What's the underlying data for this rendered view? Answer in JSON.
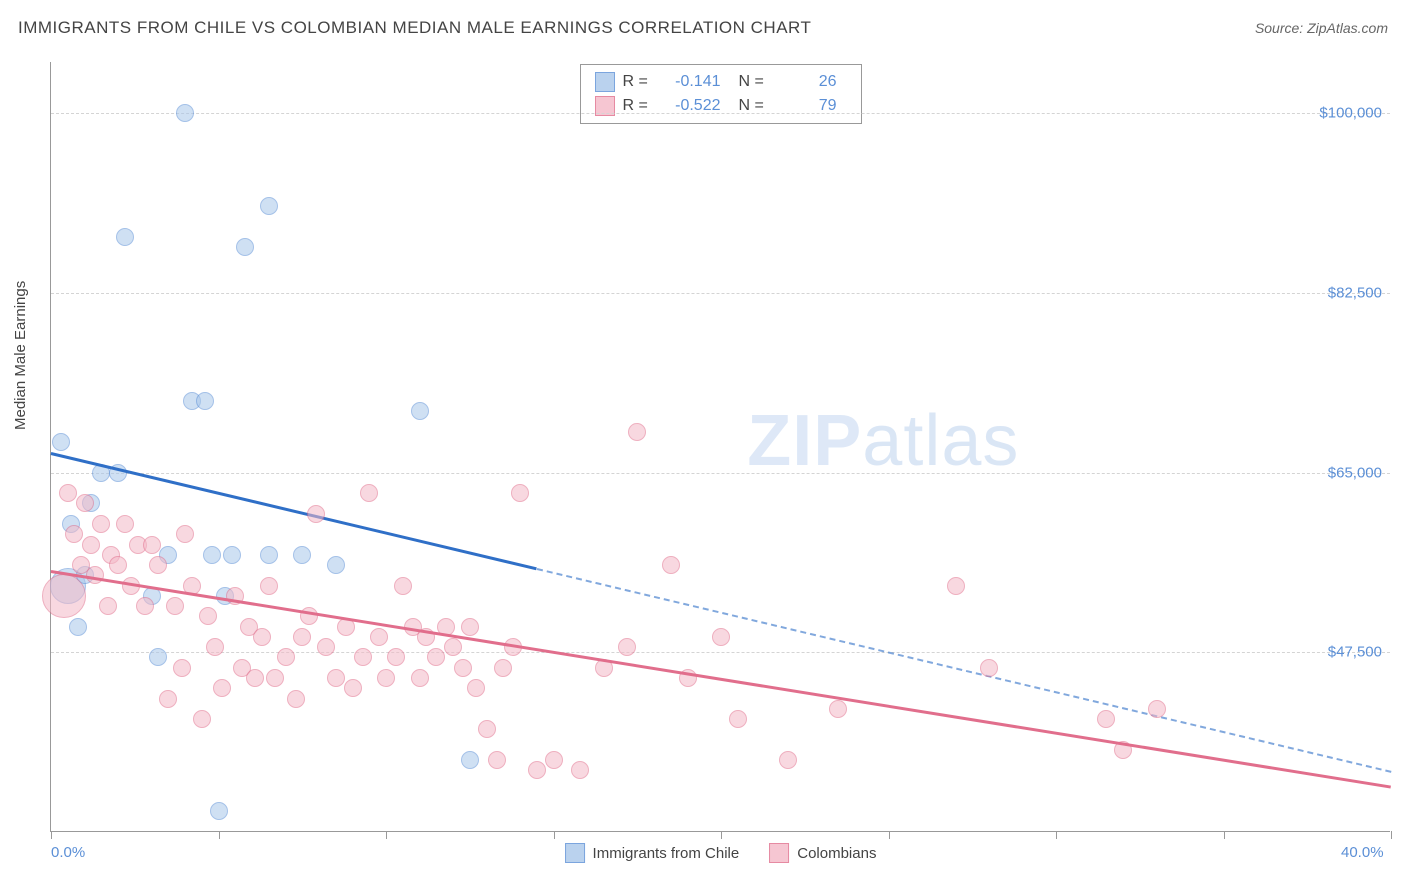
{
  "title": "IMMIGRANTS FROM CHILE VS COLOMBIAN MEDIAN MALE EARNINGS CORRELATION CHART",
  "source": "Source: ZipAtlas.com",
  "ylabel": "Median Male Earnings",
  "watermark_a": "ZIP",
  "watermark_b": "atlas",
  "chart": {
    "type": "scatter",
    "xlim": [
      0,
      40
    ],
    "ylim": [
      30000,
      105000
    ],
    "xtick_major": [
      0,
      40
    ],
    "xtick_minor_step": 5,
    "xtick_labels": {
      "0": "0.0%",
      "40": "40.0%"
    },
    "ytick_values": [
      47500,
      65000,
      82500,
      100000
    ],
    "ytick_labels": [
      "$47,500",
      "$65,000",
      "$82,500",
      "$100,000"
    ],
    "grid_color": "#d4d4d4",
    "axis_color": "#999999",
    "background_color": "#ffffff",
    "tick_label_color": "#5b8fd6",
    "title_fontsize": 17,
    "label_fontsize": 15,
    "series": [
      {
        "name": "Immigrants from Chile",
        "fill": "#a9c7ea",
        "stroke": "#5b8fd6",
        "fill_opacity": 0.55,
        "marker_radius": 9,
        "R": "-0.141",
        "N": "26",
        "trend": {
          "x1": 0,
          "y1": 67000,
          "x2": 40,
          "y2": 36000,
          "solid_until_x": 14.5,
          "color": "#2f6fc7",
          "width": 2.5
        },
        "points": [
          {
            "x": 0.5,
            "y": 54000,
            "r": 18
          },
          {
            "x": 0.3,
            "y": 68000
          },
          {
            "x": 0.6,
            "y": 60000
          },
          {
            "x": 1.5,
            "y": 65000
          },
          {
            "x": 2.0,
            "y": 65000
          },
          {
            "x": 2.2,
            "y": 88000
          },
          {
            "x": 1.0,
            "y": 55000
          },
          {
            "x": 1.2,
            "y": 62000
          },
          {
            "x": 4.0,
            "y": 100000
          },
          {
            "x": 4.2,
            "y": 72000
          },
          {
            "x": 4.6,
            "y": 72000
          },
          {
            "x": 5.8,
            "y": 87000
          },
          {
            "x": 6.5,
            "y": 91000
          },
          {
            "x": 3.0,
            "y": 53000
          },
          {
            "x": 3.2,
            "y": 47000
          },
          {
            "x": 3.5,
            "y": 57000
          },
          {
            "x": 4.8,
            "y": 57000
          },
          {
            "x": 5.2,
            "y": 53000
          },
          {
            "x": 5.4,
            "y": 57000
          },
          {
            "x": 5.0,
            "y": 32000
          },
          {
            "x": 6.5,
            "y": 57000
          },
          {
            "x": 7.5,
            "y": 57000
          },
          {
            "x": 8.5,
            "y": 56000
          },
          {
            "x": 11.0,
            "y": 71000
          },
          {
            "x": 12.5,
            "y": 37000
          },
          {
            "x": 0.8,
            "y": 50000
          }
        ]
      },
      {
        "name": "Colombians",
        "fill": "#f4b9c7",
        "stroke": "#e16e8c",
        "fill_opacity": 0.55,
        "marker_radius": 9,
        "R": "-0.522",
        "N": "79",
        "trend": {
          "x1": 0,
          "y1": 55500,
          "x2": 40,
          "y2": 34500,
          "solid_until_x": 40,
          "color": "#e16e8c",
          "width": 2.5
        },
        "points": [
          {
            "x": 0.4,
            "y": 53000,
            "r": 22
          },
          {
            "x": 0.5,
            "y": 63000
          },
          {
            "x": 0.7,
            "y": 59000
          },
          {
            "x": 0.9,
            "y": 56000
          },
          {
            "x": 1.0,
            "y": 62000
          },
          {
            "x": 1.2,
            "y": 58000
          },
          {
            "x": 1.3,
            "y": 55000
          },
          {
            "x": 1.5,
            "y": 60000
          },
          {
            "x": 1.7,
            "y": 52000
          },
          {
            "x": 1.8,
            "y": 57000
          },
          {
            "x": 2.0,
            "y": 56000
          },
          {
            "x": 2.2,
            "y": 60000
          },
          {
            "x": 2.4,
            "y": 54000
          },
          {
            "x": 2.6,
            "y": 58000
          },
          {
            "x": 2.8,
            "y": 52000
          },
          {
            "x": 3.0,
            "y": 58000
          },
          {
            "x": 3.2,
            "y": 56000
          },
          {
            "x": 3.5,
            "y": 43000
          },
          {
            "x": 3.7,
            "y": 52000
          },
          {
            "x": 3.9,
            "y": 46000
          },
          {
            "x": 4.0,
            "y": 59000
          },
          {
            "x": 4.2,
            "y": 54000
          },
          {
            "x": 4.5,
            "y": 41000
          },
          {
            "x": 4.7,
            "y": 51000
          },
          {
            "x": 4.9,
            "y": 48000
          },
          {
            "x": 5.1,
            "y": 44000
          },
          {
            "x": 5.5,
            "y": 53000
          },
          {
            "x": 5.7,
            "y": 46000
          },
          {
            "x": 5.9,
            "y": 50000
          },
          {
            "x": 6.1,
            "y": 45000
          },
          {
            "x": 6.3,
            "y": 49000
          },
          {
            "x": 6.5,
            "y": 54000
          },
          {
            "x": 6.7,
            "y": 45000
          },
          {
            "x": 7.0,
            "y": 47000
          },
          {
            "x": 7.3,
            "y": 43000
          },
          {
            "x": 7.5,
            "y": 49000
          },
          {
            "x": 7.7,
            "y": 51000
          },
          {
            "x": 7.9,
            "y": 61000
          },
          {
            "x": 8.2,
            "y": 48000
          },
          {
            "x": 8.5,
            "y": 45000
          },
          {
            "x": 8.8,
            "y": 50000
          },
          {
            "x": 9.0,
            "y": 44000
          },
          {
            "x": 9.3,
            "y": 47000
          },
          {
            "x": 9.5,
            "y": 63000
          },
          {
            "x": 9.8,
            "y": 49000
          },
          {
            "x": 10.0,
            "y": 45000
          },
          {
            "x": 10.3,
            "y": 47000
          },
          {
            "x": 10.5,
            "y": 54000
          },
          {
            "x": 10.8,
            "y": 50000
          },
          {
            "x": 11.0,
            "y": 45000
          },
          {
            "x": 11.2,
            "y": 49000
          },
          {
            "x": 11.5,
            "y": 47000
          },
          {
            "x": 11.8,
            "y": 50000
          },
          {
            "x": 12.0,
            "y": 48000
          },
          {
            "x": 12.3,
            "y": 46000
          },
          {
            "x": 12.5,
            "y": 50000
          },
          {
            "x": 12.7,
            "y": 44000
          },
          {
            "x": 13.0,
            "y": 40000
          },
          {
            "x": 13.3,
            "y": 37000
          },
          {
            "x": 13.5,
            "y": 46000
          },
          {
            "x": 13.8,
            "y": 48000
          },
          {
            "x": 14.0,
            "y": 63000
          },
          {
            "x": 14.5,
            "y": 36000
          },
          {
            "x": 15.0,
            "y": 37000
          },
          {
            "x": 15.8,
            "y": 36000
          },
          {
            "x": 16.5,
            "y": 46000
          },
          {
            "x": 17.2,
            "y": 48000
          },
          {
            "x": 17.5,
            "y": 69000
          },
          {
            "x": 18.5,
            "y": 56000
          },
          {
            "x": 19.0,
            "y": 45000
          },
          {
            "x": 20.0,
            "y": 49000
          },
          {
            "x": 20.5,
            "y": 41000
          },
          {
            "x": 22.0,
            "y": 37000
          },
          {
            "x": 23.5,
            "y": 42000
          },
          {
            "x": 27.0,
            "y": 54000
          },
          {
            "x": 28.0,
            "y": 46000
          },
          {
            "x": 31.5,
            "y": 41000
          },
          {
            "x": 32.0,
            "y": 38000
          },
          {
            "x": 33.0,
            "y": 42000
          }
        ]
      }
    ]
  },
  "legend_top_labels": {
    "R": "R  =",
    "N": "N  ="
  },
  "legend_bottom": [
    {
      "label": "Immigrants from Chile",
      "series": 0
    },
    {
      "label": "Colombians",
      "series": 1
    }
  ]
}
